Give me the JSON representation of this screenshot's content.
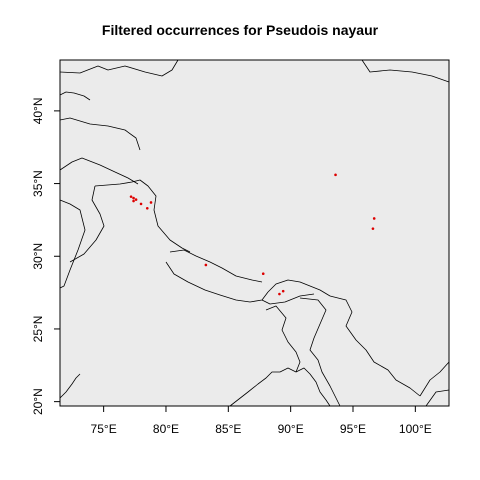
{
  "title": "Filtered occurrences for Pseudois nayaur",
  "colors": {
    "plot_background": "#ebebeb",
    "border": "#000000",
    "point": "#dd0000"
  },
  "x_axis": {
    "ticks": [
      {
        "value": 75,
        "label": "75°E"
      },
      {
        "value": 80,
        "label": "80°E"
      },
      {
        "value": 85,
        "label": "85°E"
      },
      {
        "value": 90,
        "label": "90°E"
      },
      {
        "value": 95,
        "label": "95°E"
      },
      {
        "value": 100,
        "label": "100°E"
      }
    ]
  },
  "y_axis": {
    "ticks": [
      {
        "value": 20,
        "label": "20°N"
      },
      {
        "value": 25,
        "label": "25°N"
      },
      {
        "value": 30,
        "label": "30°N"
      },
      {
        "value": 35,
        "label": "35°N"
      },
      {
        "value": 40,
        "label": "40°N"
      }
    ]
  },
  "extent": {
    "lon": [
      71.5,
      102.7
    ],
    "lat": [
      19.7,
      43.5
    ]
  },
  "occurrences": [
    {
      "lon": 77.2,
      "lat": 34.1
    },
    {
      "lon": 77.4,
      "lat": 34.0
    },
    {
      "lon": 77.6,
      "lat": 33.9
    },
    {
      "lon": 77.4,
      "lat": 33.8
    },
    {
      "lon": 78.0,
      "lat": 33.6
    },
    {
      "lon": 78.5,
      "lat": 33.3
    },
    {
      "lon": 78.8,
      "lat": 33.7
    },
    {
      "lon": 83.2,
      "lat": 29.4
    },
    {
      "lon": 87.8,
      "lat": 28.8
    },
    {
      "lon": 89.1,
      "lat": 27.4
    },
    {
      "lon": 89.4,
      "lat": 27.6
    },
    {
      "lon": 93.6,
      "lat": 35.6
    },
    {
      "lon": 96.7,
      "lat": 32.6
    },
    {
      "lon": 96.6,
      "lat": 31.9
    }
  ]
}
